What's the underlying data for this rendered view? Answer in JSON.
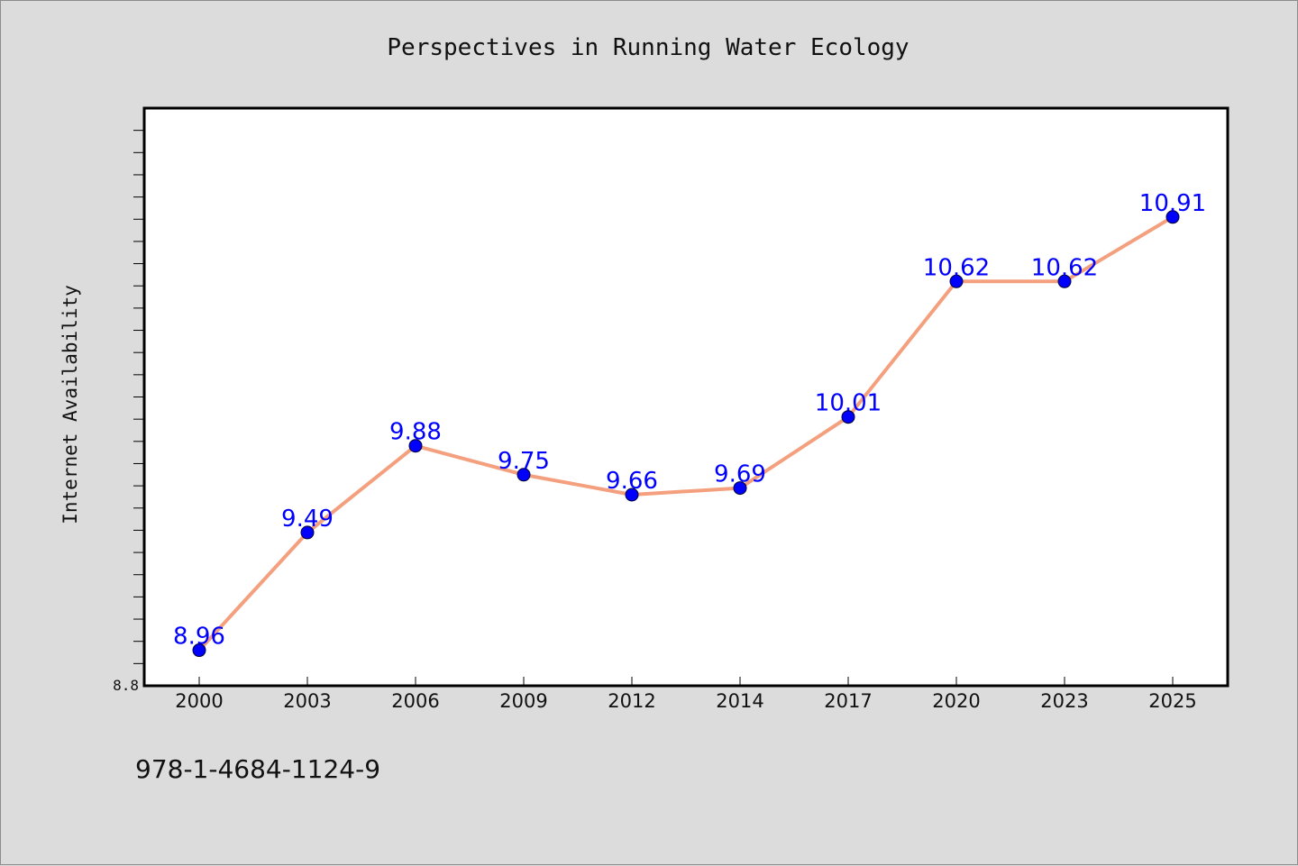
{
  "chart_data": {
    "type": "line",
    "title": "Perspectives in Running Water Ecology",
    "xlabel": "",
    "ylabel": "Internet Availability",
    "categories": [
      "2000",
      "2003",
      "2006",
      "2009",
      "2012",
      "2014",
      "2017",
      "2020",
      "2023",
      "2025"
    ],
    "series": [
      {
        "values": [
          8.96,
          9.49,
          9.88,
          9.75,
          9.66,
          9.69,
          10.01,
          10.62,
          10.62,
          10.91
        ],
        "line_color": "#f4a07e",
        "marker_color": "#0000ff",
        "label_color": "#0000ff"
      }
    ],
    "data_labels": [
      "8.96",
      "9.49",
      "9.88",
      "9.75",
      "9.66",
      "9.69",
      "10.01",
      "10.62",
      "10.62",
      "10.91"
    ],
    "ylim": [
      8.8,
      11.4
    ],
    "y_tick_labels": [
      "8.8"
    ],
    "grid": false,
    "legend": "none"
  },
  "footer": {
    "isbn": "978-1-4684-1124-9"
  },
  "colors": {
    "background": "#dcdcdc",
    "plot_background": "#ffffff",
    "axis": "#000000"
  }
}
